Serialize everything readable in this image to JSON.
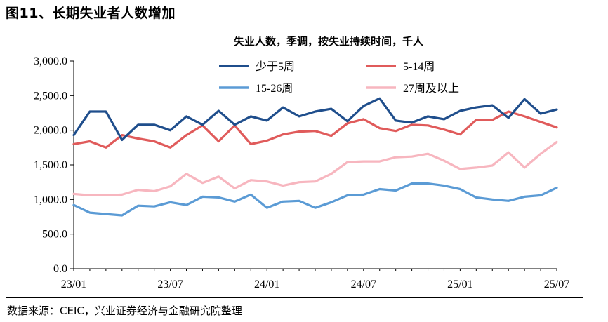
{
  "figure": {
    "title": "图11、长期失业者人数增加",
    "source": "数据来源：CEIC，兴业证券经济与金融研究院整理"
  },
  "chart_data": {
    "type": "line",
    "title": "失业人数，季调，按失业持续时间，千人",
    "xlabel": "",
    "ylabel": "",
    "ylim": [
      0,
      3000
    ],
    "yticks": [
      "0.0",
      "500.0",
      "1,000.0",
      "1,500.0",
      "2,000.0",
      "2,500.0",
      "3,000.0"
    ],
    "ytick_values": [
      0,
      500,
      1000,
      1500,
      2000,
      2500,
      3000
    ],
    "xtick_labels": [
      "23/01",
      "23/07",
      "24/01",
      "24/07",
      "25/01",
      "25/07"
    ],
    "xtick_indices": [
      0,
      6,
      12,
      18,
      24,
      30
    ],
    "x": [
      "23/01",
      "23/02",
      "23/03",
      "23/04",
      "23/05",
      "23/06",
      "23/07",
      "23/08",
      "23/09",
      "23/10",
      "23/11",
      "23/12",
      "24/01",
      "24/02",
      "24/03",
      "24/04",
      "24/05",
      "24/06",
      "24/07",
      "24/08",
      "24/09",
      "24/10",
      "24/11",
      "24/12",
      "25/01",
      "25/02",
      "25/03",
      "25/04",
      "25/05",
      "25/06",
      "25/07"
    ],
    "grid": false,
    "legend_position": "top",
    "series": [
      {
        "name": "少于5周",
        "color": "#1f4e8c",
        "values": [
          1930,
          2270,
          2270,
          1860,
          2080,
          2080,
          2000,
          2200,
          2080,
          2280,
          2080,
          2200,
          2140,
          2330,
          2200,
          2270,
          2310,
          2130,
          2350,
          2460,
          2140,
          2110,
          2200,
          2160,
          2280,
          2330,
          2360,
          2180,
          2450,
          2240,
          2300
        ]
      },
      {
        "name": "5-14周",
        "color": "#e05b5b",
        "values": [
          1800,
          1840,
          1750,
          1930,
          1880,
          1840,
          1750,
          1930,
          2070,
          1840,
          2070,
          1800,
          1850,
          1940,
          1980,
          1990,
          1920,
          2100,
          2160,
          2030,
          1990,
          2080,
          2070,
          2010,
          1940,
          2150,
          2150,
          2270,
          2200,
          2120,
          2040
        ]
      },
      {
        "name": "15-26周",
        "color": "#5b9bd5",
        "values": [
          920,
          810,
          790,
          770,
          910,
          900,
          960,
          920,
          1040,
          1030,
          970,
          1070,
          880,
          970,
          980,
          880,
          960,
          1060,
          1070,
          1150,
          1130,
          1230,
          1230,
          1200,
          1150,
          1030,
          1000,
          980,
          1040,
          1060,
          1170
        ]
      },
      {
        "name": "27周及以上",
        "color": "#f7b6bf",
        "values": [
          1080,
          1060,
          1060,
          1070,
          1140,
          1120,
          1190,
          1370,
          1240,
          1330,
          1160,
          1280,
          1260,
          1200,
          1250,
          1260,
          1370,
          1540,
          1550,
          1550,
          1610,
          1620,
          1660,
          1560,
          1440,
          1460,
          1490,
          1680,
          1460,
          1660,
          1830
        ]
      }
    ]
  }
}
